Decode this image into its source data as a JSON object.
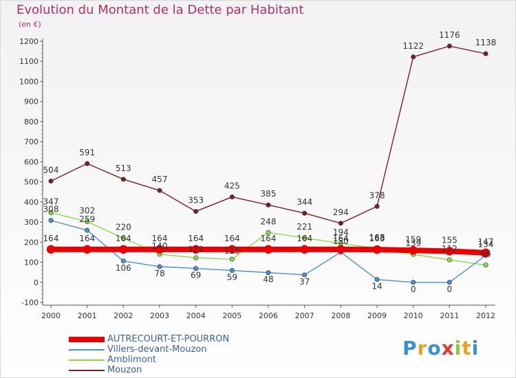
{
  "header": {
    "title": "Evolution du Montant de la Dette par Habitant",
    "unit": "(en €)"
  },
  "chart_data": {
    "type": "line",
    "x": [
      "2000",
      "2001",
      "2002",
      "2003",
      "2004",
      "2005",
      "2006",
      "2007",
      "2008",
      "2009",
      "2010",
      "2011",
      "2012"
    ],
    "ylim": [
      -100,
      1200
    ],
    "yticks": [
      -100,
      0,
      100,
      200,
      300,
      400,
      500,
      600,
      700,
      800,
      900,
      1000,
      1100,
      1200
    ],
    "grid": false,
    "legend_position": "bottom-left",
    "series": [
      {
        "name": "AUTRECOURT-ET-POURRON",
        "color": "#ee0000",
        "values": [
          164,
          164,
          164,
          164,
          164,
          164,
          164,
          164,
          164,
          163,
          159,
          155,
          147
        ]
      },
      {
        "name": "Villers-devant-Mouzon",
        "color": "#4a8fd6",
        "values": [
          308,
          259,
          106,
          78,
          69,
          59,
          48,
          37,
          150,
          14,
          0,
          0,
          134
        ]
      },
      {
        "name": "Amblimont",
        "color": "#88dd44",
        "values": [
          347,
          302,
          220,
          140,
          122,
          115,
          248,
          221,
          194,
          168,
          139,
          112,
          86
        ]
      },
      {
        "name": "Mouzon",
        "color": "#7a1e28",
        "values": [
          504,
          591,
          513,
          457,
          353,
          425,
          385,
          344,
          294,
          378,
          1122,
          1176,
          1138
        ]
      }
    ]
  },
  "branding": {
    "logo_letters": [
      "P",
      "r",
      "o",
      "x",
      "i",
      "t",
      "i"
    ],
    "logo_colors": [
      "#3a8fd6",
      "#f0a020",
      "#3a8fd6",
      "#ee3333",
      "#88cc33",
      "#f0a020",
      "#3a8fd6"
    ]
  }
}
